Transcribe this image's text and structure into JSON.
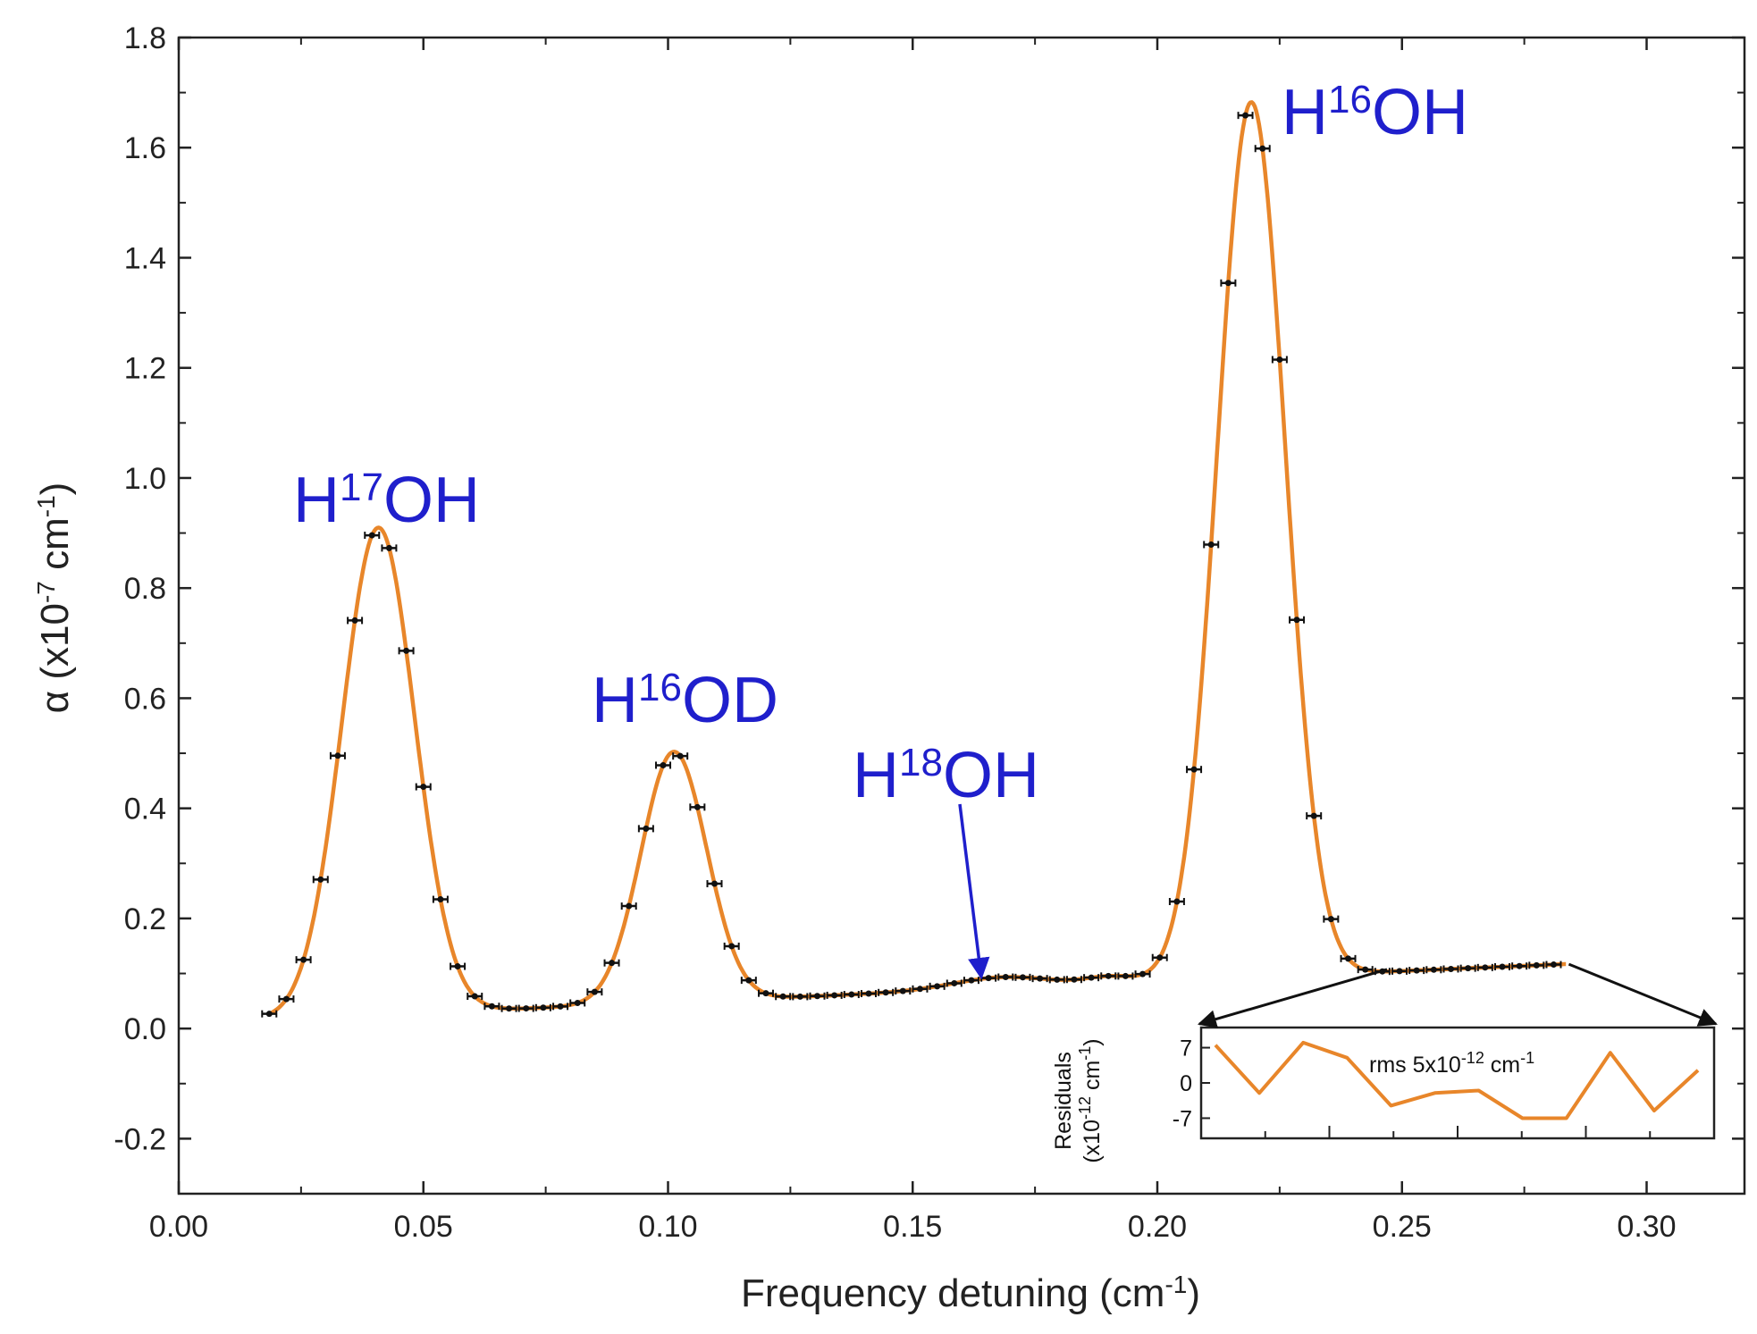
{
  "chart_data": {
    "type": "line",
    "xlabel": "Frequency detuning (cm",
    "xlabel_sup": "-1",
    "xlabel_end": ")",
    "ylabel_pre": "α (x10",
    "ylabel_sup1": "-7",
    "ylabel_mid": " cm",
    "ylabel_sup2": "-1",
    "ylabel_end": ")",
    "xlim": [
      0.0,
      0.32
    ],
    "ylim": [
      -0.3,
      1.8
    ],
    "x_ticks": [
      "0.00",
      "0.05",
      "0.10",
      "0.15",
      "0.20",
      "0.25",
      "0.30"
    ],
    "x_tick_values": [
      0.0,
      0.05,
      0.1,
      0.15,
      0.2,
      0.25,
      0.3
    ],
    "y_ticks": [
      "-0.2",
      "0.0",
      "0.2",
      "0.4",
      "0.6",
      "0.8",
      "1.0",
      "1.2",
      "1.4",
      "1.6",
      "1.8"
    ],
    "y_tick_values": [
      -0.2,
      0.0,
      0.2,
      0.4,
      0.6,
      0.8,
      1.0,
      1.2,
      1.4,
      1.6,
      1.8
    ],
    "fit_color": "#e8862a",
    "marker_color": "#111111",
    "label_color": "#1f1fcc",
    "peak_labels": [
      {
        "base": "H",
        "sup": "17",
        "rest": "OH",
        "x": 0.04,
        "y": 0.9
      },
      {
        "base": "H",
        "sup": "16",
        "rest": "OD",
        "x": 0.101,
        "y": 0.49
      },
      {
        "base": "H",
        "sup": "18",
        "rest": "OH",
        "x": 0.165,
        "y": 0.075
      },
      {
        "base": "H",
        "sup": "16",
        "rest": "OH",
        "x": 0.219,
        "y": 1.66
      }
    ],
    "model": {
      "baseline_start": 0.017,
      "baseline_slope": 0.38,
      "peaks": [
        {
          "center": 0.0408,
          "amplitude": 0.885,
          "width": 0.0105
        },
        {
          "center": 0.1012,
          "amplitude": 0.455,
          "width": 0.0095
        },
        {
          "center": 0.168,
          "amplitude": 0.02,
          "width": 0.014
        },
        {
          "center": 0.1905,
          "amplitude": 0.012,
          "width": 0.007
        },
        {
          "center": 0.2192,
          "amplitude": 1.59,
          "width": 0.0098
        }
      ],
      "x_start": 0.0185,
      "x_end": 0.2835,
      "marker_step": 0.0035
    },
    "inset": {
      "ylabel_line1": "Residuals",
      "ylabel_line2_pre": "(x10",
      "ylabel_line2_sup1": "-12",
      "ylabel_line2_mid": " cm",
      "ylabel_line2_sup2": "-1",
      "ylabel_line2_end": ")",
      "y_ticks": [
        "7",
        "0",
        "-7"
      ],
      "y_tick_values": [
        7,
        0,
        -7
      ],
      "ylim": [
        -11,
        11
      ],
      "annotation_pre": "rms 5x10",
      "annotation_sup1": "-12",
      "annotation_mid": " cm",
      "annotation_sup2": "-1",
      "x_range": [
        0.25,
        0.283
      ],
      "values": [
        7.5,
        -2,
        8,
        5,
        -4.5,
        -2,
        -1.5,
        -7,
        -7,
        6,
        -5.5,
        2.5
      ]
    }
  }
}
